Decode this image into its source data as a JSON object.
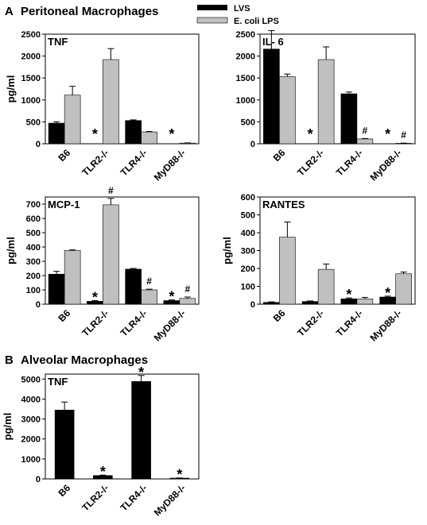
{
  "sections": {
    "a": {
      "letter": "A",
      "title": "Peritoneal Macrophages"
    },
    "b": {
      "letter": "B",
      "title": "Alveolar Macrophages"
    }
  },
  "legend": [
    {
      "label": "LVS",
      "color": "#000000"
    },
    {
      "label": "E. coli LPS",
      "color": "#c0c0c0"
    }
  ],
  "colors": {
    "LVS": "#000000",
    "LPS": "#c0c0c0",
    "frame": "#000000"
  },
  "chart_data": [
    {
      "type": "bar",
      "title": "TNF",
      "ylabel": "pg/ml",
      "categories": [
        "B6",
        "TLR2-/-",
        "TLR4-/-",
        "MyD88-/-"
      ],
      "ylim": [
        0,
        2500
      ],
      "yticks": [
        0,
        500,
        1000,
        1500,
        2000,
        2500
      ],
      "series": [
        {
          "name": "LVS",
          "values": [
            470,
            0,
            530,
            0
          ],
          "errors": [
            30,
            0,
            15,
            0
          ],
          "markers": [
            "",
            "*",
            "",
            "*"
          ]
        },
        {
          "name": "E. coli LPS",
          "values": [
            1110,
            1920,
            270,
            15
          ],
          "errors": [
            200,
            250,
            10,
            5
          ],
          "markers": [
            "",
            "",
            "",
            ""
          ]
        }
      ]
    },
    {
      "type": "bar",
      "title": "IL- 6",
      "ylabel": "",
      "categories": [
        "B6",
        "TLR2-/-",
        "TLR4-/-",
        "MyD88-/-"
      ],
      "ylim": [
        0,
        2500
      ],
      "yticks": [
        0,
        500,
        1000,
        1500,
        2000,
        2500
      ],
      "series": [
        {
          "name": "LVS",
          "values": [
            2160,
            0,
            1140,
            0
          ],
          "errors": [
            420,
            0,
            40,
            0
          ],
          "markers": [
            "",
            "*",
            "",
            "*"
          ]
        },
        {
          "name": "E. coli LPS",
          "values": [
            1530,
            1920,
            110,
            10
          ],
          "errors": [
            60,
            290,
            10,
            5
          ],
          "markers": [
            "",
            "",
            "#",
            "#"
          ]
        }
      ]
    },
    {
      "type": "bar",
      "title": "MCP-1",
      "ylabel": "pg/ml",
      "categories": [
        "B6",
        "TLR2-/-",
        "TLR4-/-",
        "MyD88-/-"
      ],
      "ylim": [
        0,
        750
      ],
      "yticks": [
        0,
        100,
        200,
        300,
        400,
        500,
        600,
        700
      ],
      "series": [
        {
          "name": "LVS",
          "values": [
            210,
            20,
            245,
            25
          ],
          "errors": [
            20,
            5,
            5,
            5
          ],
          "markers": [
            "",
            "*",
            "",
            "*"
          ]
        },
        {
          "name": "E. coli LPS",
          "values": [
            375,
            695,
            100,
            40
          ],
          "errors": [
            5,
            45,
            5,
            10
          ],
          "markers": [
            "",
            "#",
            "#",
            "#"
          ]
        }
      ]
    },
    {
      "type": "bar",
      "title": "RANTES",
      "ylabel": "pg/ml",
      "categories": [
        "B6",
        "TLR2-/-",
        "TLR4-/-",
        "MyD88-/-"
      ],
      "ylim": [
        0,
        600
      ],
      "yticks": [
        0,
        100,
        200,
        300,
        400,
        500,
        600
      ],
      "series": [
        {
          "name": "LVS",
          "values": [
            10,
            15,
            30,
            40
          ],
          "errors": [
            3,
            3,
            5,
            5
          ],
          "markers": [
            "",
            "",
            "*",
            "*"
          ]
        },
        {
          "name": "E. coli LPS",
          "values": [
            375,
            195,
            30,
            170
          ],
          "errors": [
            85,
            30,
            8,
            10
          ],
          "markers": [
            "",
            "",
            "",
            ""
          ]
        }
      ]
    },
    {
      "type": "bar",
      "title": "TNF",
      "ylabel": "pg/ml",
      "categories": [
        "B6",
        "TLR2-/-",
        "TLR4-/-",
        "MyD88-/-"
      ],
      "ylim": [
        0,
        5250
      ],
      "yticks": [
        0,
        1000,
        2000,
        3000,
        4000,
        5000
      ],
      "series": [
        {
          "name": "LVS",
          "values": [
            3450,
            170,
            4880,
            40
          ],
          "errors": [
            400,
            20,
            300,
            10
          ],
          "markers": [
            "",
            "*",
            "*",
            "*"
          ]
        }
      ]
    }
  ]
}
